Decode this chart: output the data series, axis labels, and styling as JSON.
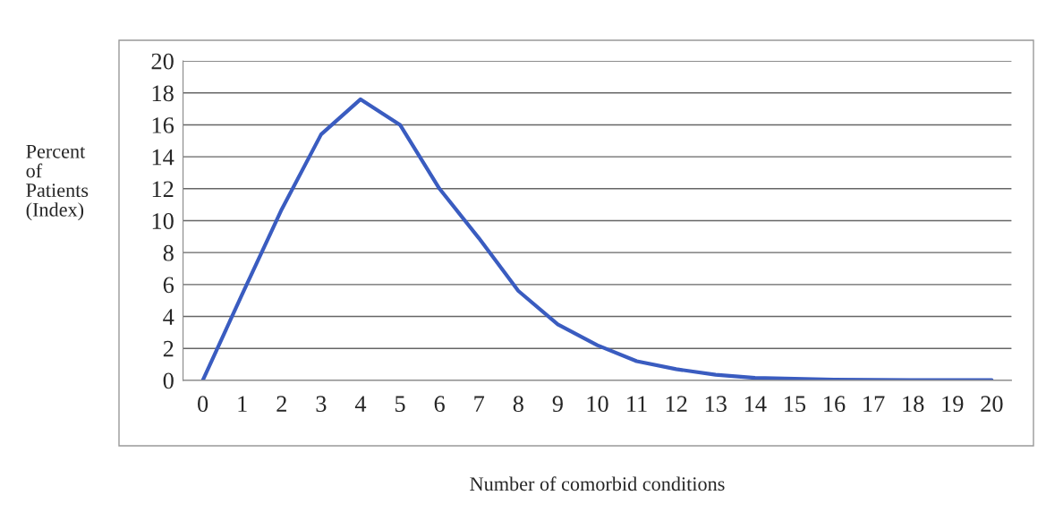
{
  "chart_data": {
    "type": "line",
    "xlabel": "Number of comorbid conditions",
    "ylabel": "Percent\nof\nPatients\n(Index)",
    "categories": [
      "0",
      "1",
      "2",
      "3",
      "4",
      "5",
      "6",
      "7",
      "8",
      "9",
      "10",
      "11",
      "12",
      "13",
      "14",
      "15",
      "16",
      "17",
      "18",
      "19",
      "20"
    ],
    "series": [
      {
        "color": "#3a5cc0",
        "values": [
          0,
          5.4,
          10.7,
          15.4,
          17.6,
          16.0,
          12.0,
          8.9,
          5.6,
          3.5,
          2.2,
          1.2,
          0.7,
          0.35,
          0.15,
          0.1,
          0.05,
          0.03,
          0.02,
          0.01,
          0.01
        ]
      }
    ],
    "ylim": [
      0,
      20
    ],
    "yticks": [
      0,
      2,
      4,
      6,
      8,
      10,
      12,
      14,
      16,
      18,
      20
    ],
    "grid": "y",
    "marker": "none",
    "line_style": "solid",
    "legend": false
  }
}
